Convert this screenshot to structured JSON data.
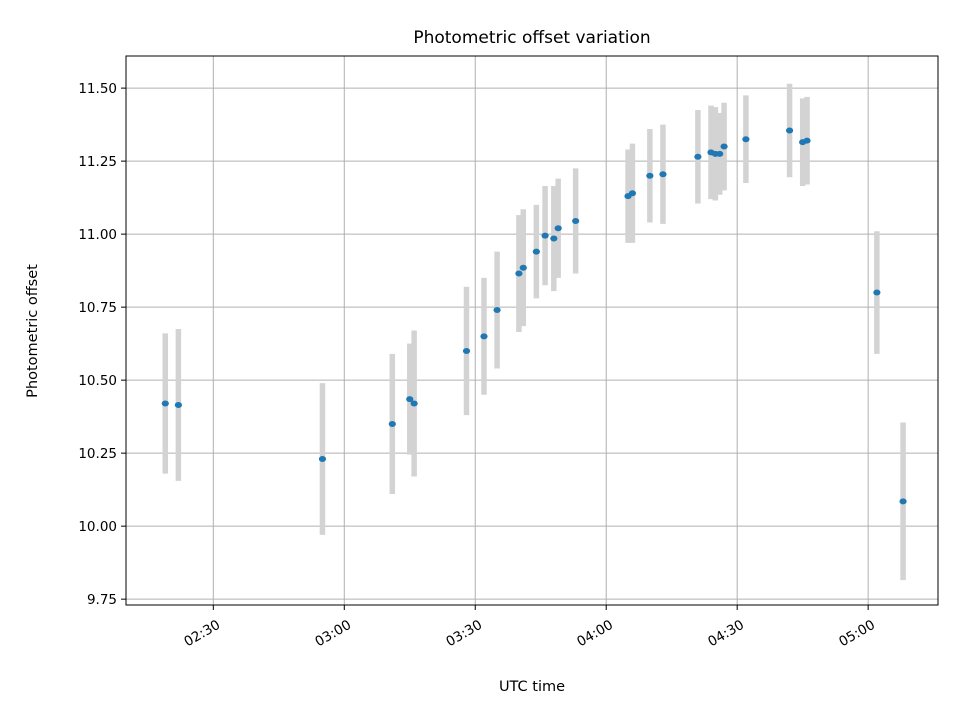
{
  "chart_data": {
    "type": "scatter",
    "title": "Photometric offset variation",
    "xlabel": "UTC time",
    "ylabel": "Photometric offset",
    "x_is_time": true,
    "xlim": [
      "02:10",
      "05:16"
    ],
    "ylim": [
      9.73,
      11.61
    ],
    "x_ticks": [
      "02:30",
      "03:00",
      "03:30",
      "04:00",
      "04:30",
      "05:00"
    ],
    "y_ticks": [
      "9.75",
      "10.00",
      "10.25",
      "10.50",
      "10.75",
      "11.00",
      "11.25",
      "11.50"
    ],
    "grid": true,
    "marker_color": "#1f77b4",
    "errorbar_color": "#d3d3d3",
    "points": [
      {
        "x": "02:19",
        "y": 10.42,
        "err": 0.24
      },
      {
        "x": "02:22",
        "y": 10.415,
        "err": 0.26
      },
      {
        "x": "02:55",
        "y": 10.23,
        "err": 0.26
      },
      {
        "x": "03:11",
        "y": 10.35,
        "err": 0.24
      },
      {
        "x": "03:15",
        "y": 10.435,
        "err": 0.19
      },
      {
        "x": "03:16",
        "y": 10.42,
        "err": 0.25
      },
      {
        "x": "03:28",
        "y": 10.6,
        "err": 0.22
      },
      {
        "x": "03:32",
        "y": 10.65,
        "err": 0.2
      },
      {
        "x": "03:35",
        "y": 10.74,
        "err": 0.2
      },
      {
        "x": "03:40",
        "y": 10.865,
        "err": 0.2
      },
      {
        "x": "03:41",
        "y": 10.885,
        "err": 0.2
      },
      {
        "x": "03:44",
        "y": 10.94,
        "err": 0.16
      },
      {
        "x": "03:46",
        "y": 10.995,
        "err": 0.17
      },
      {
        "x": "03:48",
        "y": 10.985,
        "err": 0.18
      },
      {
        "x": "03:49",
        "y": 11.02,
        "err": 0.17
      },
      {
        "x": "03:53",
        "y": 11.045,
        "err": 0.18
      },
      {
        "x": "04:05",
        "y": 11.13,
        "err": 0.16
      },
      {
        "x": "04:06",
        "y": 11.14,
        "err": 0.17
      },
      {
        "x": "04:10",
        "y": 11.2,
        "err": 0.16
      },
      {
        "x": "04:13",
        "y": 11.205,
        "err": 0.17
      },
      {
        "x": "04:21",
        "y": 11.265,
        "err": 0.16
      },
      {
        "x": "04:24",
        "y": 11.28,
        "err": 0.16
      },
      {
        "x": "04:25",
        "y": 11.275,
        "err": 0.16
      },
      {
        "x": "04:26",
        "y": 11.275,
        "err": 0.14
      },
      {
        "x": "04:27",
        "y": 11.3,
        "err": 0.15
      },
      {
        "x": "04:32",
        "y": 11.325,
        "err": 0.15
      },
      {
        "x": "04:42",
        "y": 11.355,
        "err": 0.16
      },
      {
        "x": "04:45",
        "y": 11.315,
        "err": 0.15
      },
      {
        "x": "04:46",
        "y": 11.32,
        "err": 0.15
      },
      {
        "x": "05:02",
        "y": 10.8,
        "err": 0.21
      },
      {
        "x": "05:08",
        "y": 10.085,
        "err": 0.27
      }
    ]
  }
}
